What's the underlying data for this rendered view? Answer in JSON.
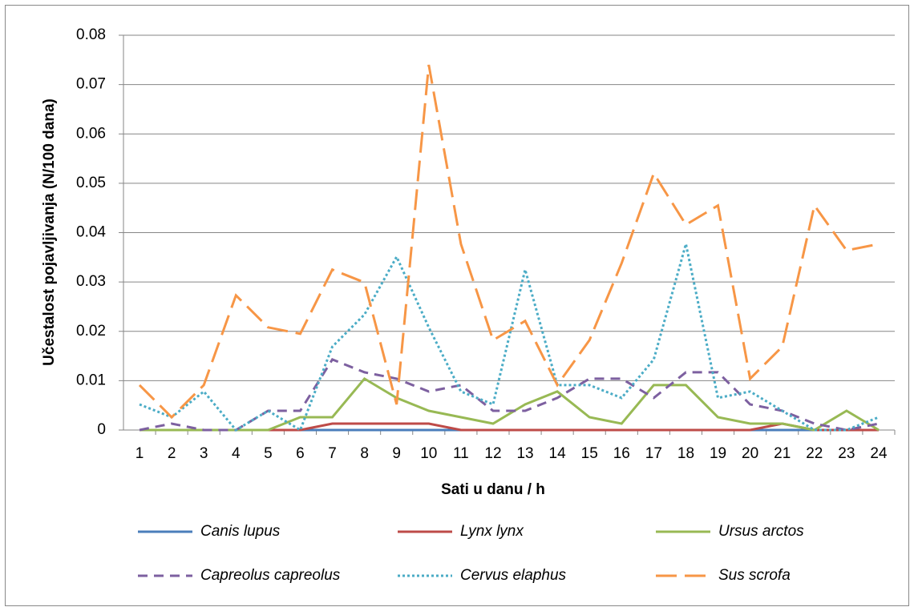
{
  "chart_data": {
    "type": "line",
    "x_label": "Sati u danu / h",
    "y_label": "Učestalost pojavljivanja (N/100 dana)",
    "categories": [
      1,
      2,
      3,
      4,
      5,
      6,
      7,
      8,
      9,
      10,
      11,
      12,
      13,
      14,
      15,
      16,
      17,
      18,
      19,
      20,
      21,
      22,
      23,
      24
    ],
    "ylim": [
      0,
      0.08
    ],
    "yticks": [
      0,
      0.01,
      0.02,
      0.03,
      0.04,
      0.05,
      0.06,
      0.07,
      0.08
    ],
    "grid": true,
    "legend": "bottom",
    "series": [
      {
        "name": "Canis lupus",
        "color": "#4a7ebb",
        "dash": "solid",
        "values": [
          0,
          0,
          0,
          0,
          0,
          0,
          0,
          0,
          0,
          0,
          0,
          0,
          0,
          0,
          0,
          0,
          0,
          0,
          0,
          0,
          0,
          0,
          0,
          0
        ]
      },
      {
        "name": "Lynx lynx",
        "color": "#be4b48",
        "dash": "solid",
        "values": [
          0,
          0,
          0,
          0,
          0,
          0,
          0.0013,
          0.0013,
          0.0013,
          0.0013,
          0,
          0,
          0,
          0,
          0,
          0,
          0,
          0,
          0,
          0,
          0.0013,
          0,
          0,
          0
        ]
      },
      {
        "name": "Ursus arctos",
        "color": "#98b954",
        "dash": "solid",
        "values": [
          0,
          0,
          0,
          0,
          0,
          0.0026,
          0.0026,
          0.0104,
          0.0065,
          0.0039,
          0.0026,
          0.0013,
          0.0052,
          0.0078,
          0.0026,
          0.0013,
          0.0091,
          0.0091,
          0.0026,
          0.0013,
          0.0013,
          0,
          0.0039,
          0
        ]
      },
      {
        "name": "Capreolus capreolus",
        "color": "#7d60a0",
        "dash": "dash",
        "values": [
          0,
          0.0013,
          0,
          0,
          0.0039,
          0.0039,
          0.0143,
          0.0117,
          0.0104,
          0.0078,
          0.0091,
          0.0039,
          0.0039,
          0.0065,
          0.0104,
          0.0104,
          0.0065,
          0.0117,
          0.0117,
          0.0052,
          0.0039,
          0.0013,
          0,
          0.0013
        ]
      },
      {
        "name": "Cervus elaphus",
        "color": "#4bacc6",
        "dash": "dot",
        "values": [
          0.0052,
          0.0026,
          0.0078,
          0,
          0.0039,
          0,
          0.0169,
          0.0234,
          0.0351,
          0.0208,
          0.0078,
          0.0052,
          0.0325,
          0.0091,
          0.0091,
          0.0065,
          0.0143,
          0.0377,
          0.0065,
          0.0078,
          0.0039,
          0,
          0,
          0.0026
        ]
      },
      {
        "name": "Sus scrofa",
        "color": "#f79646",
        "dash": "longdash",
        "values": [
          0.0091,
          0.0026,
          0.0091,
          0.0273,
          0.0208,
          0.0195,
          0.0325,
          0.0299,
          0.0052,
          0.074,
          0.0377,
          0.0182,
          0.0221,
          0.0091,
          0.0182,
          0.0338,
          0.052,
          0.0416,
          0.0455,
          0.0104,
          0.0169,
          0.0455,
          0.0364,
          0.0377
        ]
      }
    ]
  }
}
